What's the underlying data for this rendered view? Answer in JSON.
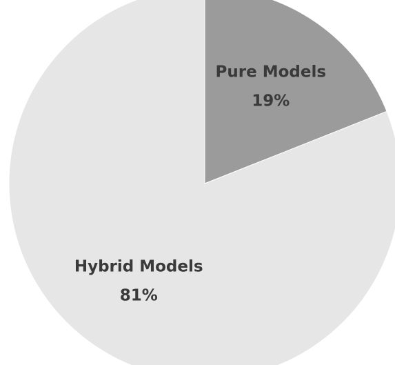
{
  "chart_data": {
    "type": "pie",
    "categories": [
      "Pure Models",
      "Hybrid Models"
    ],
    "values": [
      19,
      81
    ],
    "value_labels": [
      "19%",
      "81%"
    ],
    "colors": [
      "#9b9b9b",
      "#e6e6e6"
    ]
  }
}
